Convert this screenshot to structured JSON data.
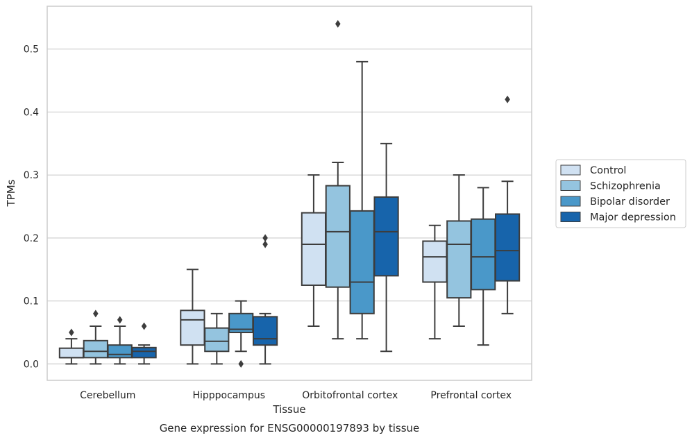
{
  "chart_data": {
    "type": "box",
    "title": "Gene expression for ENSG00000197893 by tissue",
    "xlabel": "Tissue",
    "ylabel": "TPMs",
    "ylim": [
      -0.026,
      0.568
    ],
    "yticks": [
      "0.0",
      "0.1",
      "0.2",
      "0.3",
      "0.4",
      "0.5"
    ],
    "ytick_values": [
      0.0,
      0.1,
      0.2,
      0.3,
      0.4,
      0.5
    ],
    "categories": [
      "Cerebellum",
      "Hipppocampus",
      "Orbitofrontal cortex",
      "Prefrontal cortex"
    ],
    "grid": true,
    "legend_position": "right",
    "series": [
      {
        "name": "Control",
        "color": "#d0e1f2",
        "boxes": [
          {
            "whislo": 0.0,
            "q1": 0.01,
            "med": 0.01,
            "q3": 0.025,
            "whishi": 0.04,
            "fliers": [
              0.05
            ]
          },
          {
            "whislo": 0.0,
            "q1": 0.03,
            "med": 0.07,
            "q3": 0.085,
            "whishi": 0.15,
            "fliers": []
          },
          {
            "whislo": 0.06,
            "q1": 0.125,
            "med": 0.19,
            "q3": 0.24,
            "whishi": 0.3,
            "fliers": []
          },
          {
            "whislo": 0.04,
            "q1": 0.13,
            "med": 0.17,
            "q3": 0.195,
            "whishi": 0.22,
            "fliers": []
          }
        ]
      },
      {
        "name": "Schizophrenia",
        "color": "#94c4df",
        "boxes": [
          {
            "whislo": 0.0,
            "q1": 0.01,
            "med": 0.02,
            "q3": 0.037,
            "whishi": 0.06,
            "fliers": [
              0.08
            ]
          },
          {
            "whislo": 0.0,
            "q1": 0.02,
            "med": 0.036,
            "q3": 0.057,
            "whishi": 0.08,
            "fliers": []
          },
          {
            "whislo": 0.04,
            "q1": 0.122,
            "med": 0.21,
            "q3": 0.283,
            "whishi": 0.32,
            "fliers": [
              0.54
            ]
          },
          {
            "whislo": 0.06,
            "q1": 0.105,
            "med": 0.19,
            "q3": 0.227,
            "whishi": 0.3,
            "fliers": []
          }
        ]
      },
      {
        "name": "Bipolar disorder",
        "color": "#4a98c9",
        "boxes": [
          {
            "whislo": 0.0,
            "q1": 0.01,
            "med": 0.015,
            "q3": 0.03,
            "whishi": 0.06,
            "fliers": [
              0.07
            ]
          },
          {
            "whislo": 0.02,
            "q1": 0.05,
            "med": 0.055,
            "q3": 0.08,
            "whishi": 0.1,
            "fliers": [
              0.0
            ]
          },
          {
            "whislo": 0.04,
            "q1": 0.08,
            "med": 0.13,
            "q3": 0.243,
            "whishi": 0.48,
            "fliers": []
          },
          {
            "whislo": 0.03,
            "q1": 0.118,
            "med": 0.17,
            "q3": 0.23,
            "whishi": 0.28,
            "fliers": []
          }
        ]
      },
      {
        "name": "Major depression",
        "color": "#1764ab",
        "boxes": [
          {
            "whislo": 0.0,
            "q1": 0.01,
            "med": 0.02,
            "q3": 0.026,
            "whishi": 0.03,
            "fliers": [
              0.06
            ]
          },
          {
            "whislo": 0.0,
            "q1": 0.03,
            "med": 0.04,
            "q3": 0.075,
            "whishi": 0.08,
            "fliers": [
              0.19,
              0.2
            ]
          },
          {
            "whislo": 0.02,
            "q1": 0.14,
            "med": 0.21,
            "q3": 0.265,
            "whishi": 0.35,
            "fliers": []
          },
          {
            "whislo": 0.08,
            "q1": 0.132,
            "med": 0.18,
            "q3": 0.238,
            "whishi": 0.29,
            "fliers": [
              0.42
            ]
          }
        ]
      }
    ]
  }
}
